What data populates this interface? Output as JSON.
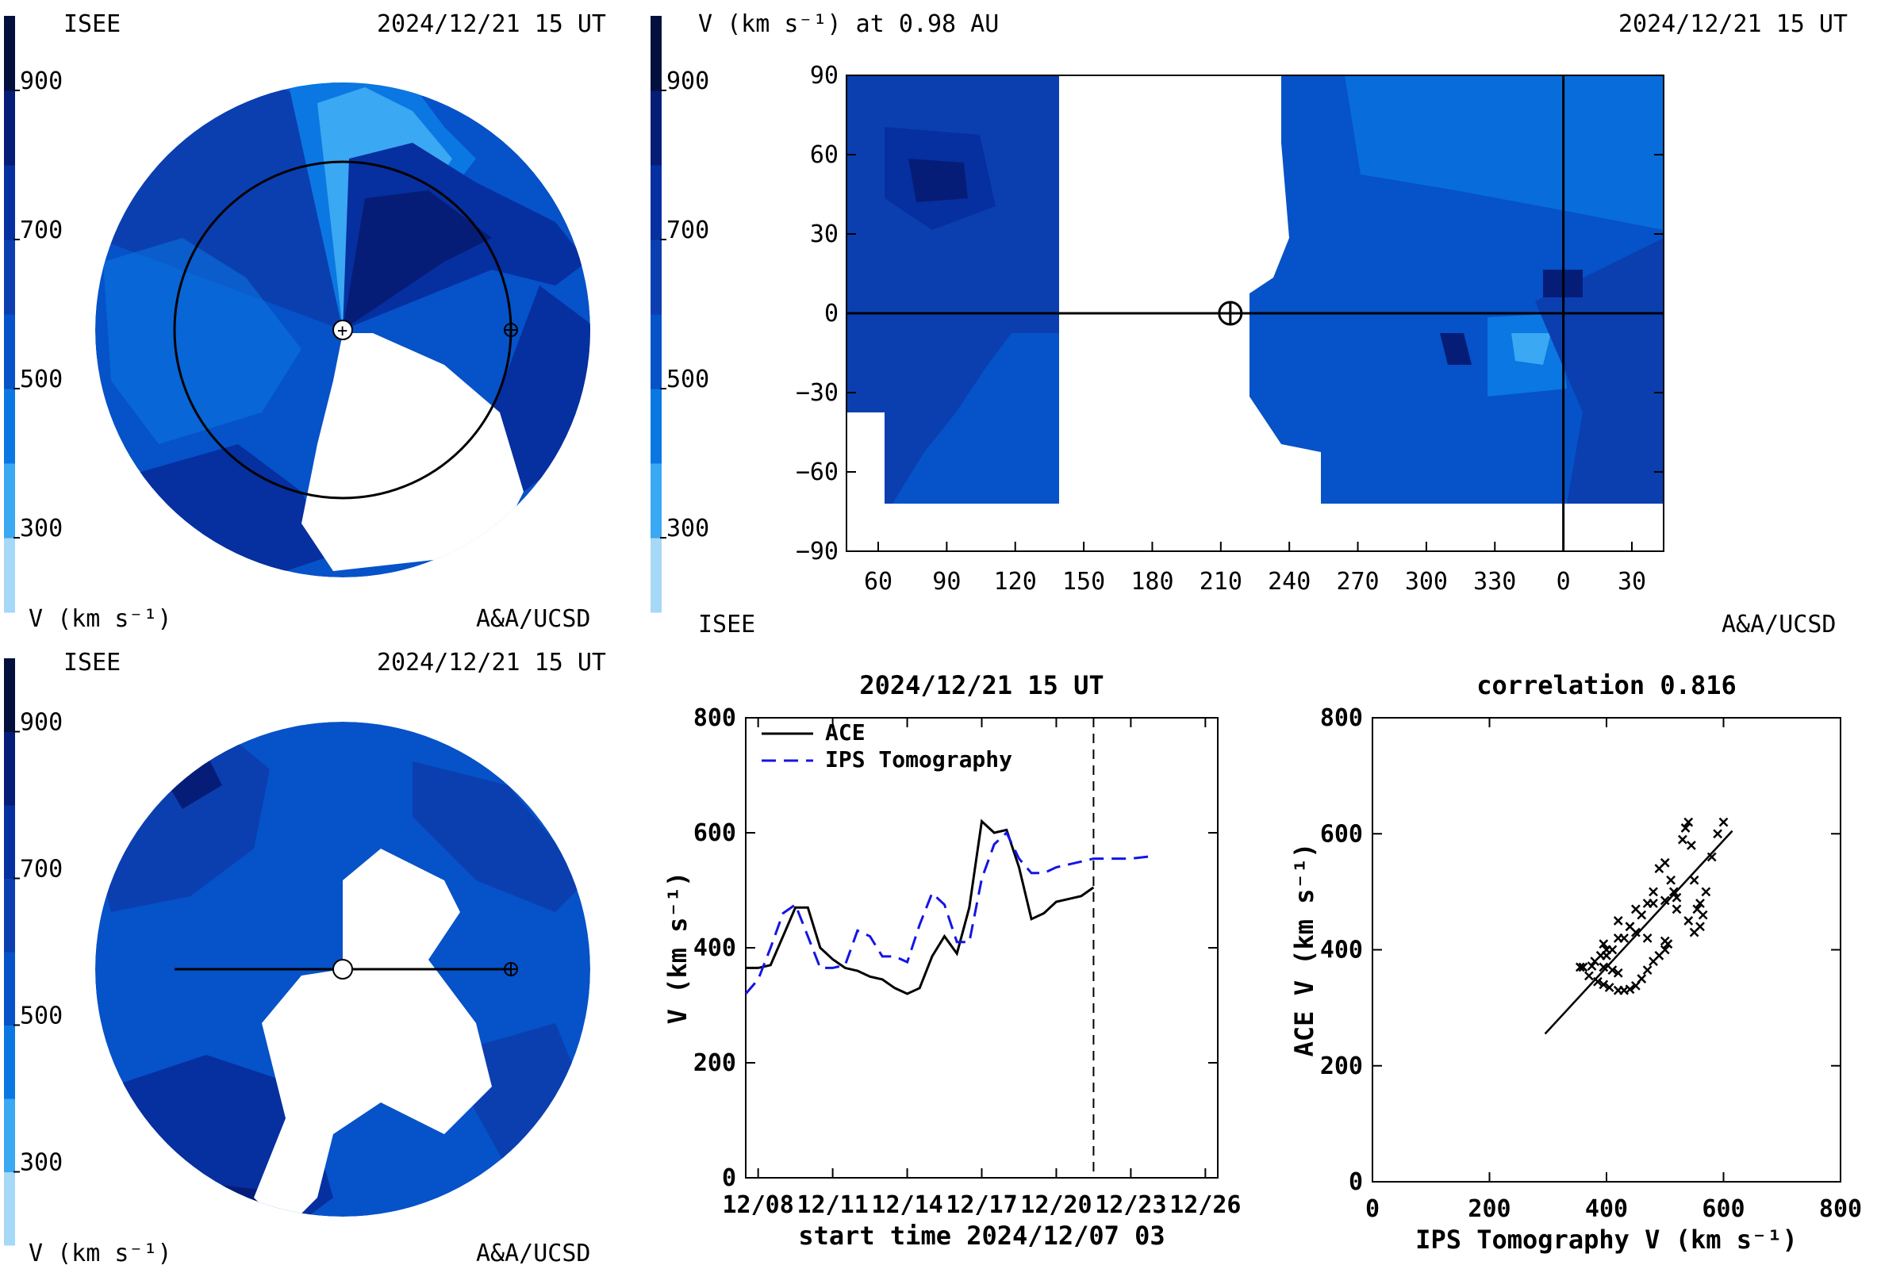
{
  "colorbar": {
    "levels": [
      "#a6d8f7",
      "#3aa8f2",
      "#0b77e2",
      "#0652c8",
      "#0b3fb0",
      "#062fa0",
      "#061d78",
      "#03103e"
    ],
    "ticks": [
      900,
      700,
      500,
      300
    ],
    "range": [
      200,
      1000
    ]
  },
  "panel_tl": {
    "left_label": "ISEE",
    "timestamp": "2024/12/21 15 UT",
    "unit_label": "V (km s⁻¹)",
    "credit": "A&A/UCSD"
  },
  "panel_tr": {
    "title": "V (km s⁻¹) at 0.98 AU",
    "timestamp": "2024/12/21 15 UT",
    "left_label": "ISEE",
    "credit": "A&A/UCSD",
    "y_ticks": [
      90,
      60,
      30,
      0,
      -30,
      -60,
      -90
    ],
    "x_ticks": [
      "60",
      "90",
      "120",
      "150",
      "180",
      "210",
      "240",
      "270",
      "300",
      "330",
      "0",
      "30"
    ]
  },
  "panel_bl": {
    "left_label": "ISEE",
    "timestamp": "2024/12/21 15 UT",
    "unit_label": "V (km s⁻¹)",
    "credit": "A&A/UCSD"
  },
  "chart_data": [
    {
      "type": "line",
      "title": "2024/12/21 15 UT",
      "xlabel": "start time 2024/12/07 03",
      "ylabel": "V (km s⁻¹)",
      "ylim": [
        0,
        800
      ],
      "xlim": [
        0.5,
        19.5
      ],
      "x_ticks": [
        {
          "x": 1,
          "label": "12/08"
        },
        {
          "x": 4,
          "label": "12/11"
        },
        {
          "x": 7,
          "label": "12/14"
        },
        {
          "x": 10,
          "label": "12/17"
        },
        {
          "x": 13,
          "label": "12/20"
        },
        {
          "x": 16,
          "label": "12/23"
        },
        {
          "x": 19,
          "label": "12/26"
        }
      ],
      "y_ticks": [
        0,
        200,
        400,
        600,
        800
      ],
      "vline_x": 14.5,
      "series": [
        {
          "name": "ACE",
          "color": "#000000",
          "dash": "none",
          "x": [
            0.5,
            1.0,
            1.5,
            2.0,
            2.5,
            3.0,
            3.5,
            4.0,
            4.5,
            5.0,
            5.5,
            6.0,
            6.5,
            7.0,
            7.5,
            8.0,
            8.5,
            9.0,
            9.5,
            10.0,
            10.5,
            11.0,
            11.5,
            12.0,
            12.5,
            13.0,
            13.5,
            14.0,
            14.5
          ],
          "values": [
            365,
            365,
            370,
            420,
            470,
            470,
            400,
            380,
            365,
            360,
            350,
            345,
            330,
            320,
            330,
            385,
            420,
            390,
            470,
            620,
            600,
            605,
            540,
            450,
            460,
            480,
            485,
            490,
            505
          ]
        },
        {
          "name": "IPS Tomography",
          "color": "#1414e6",
          "dash": "18,10",
          "x": [
            0.5,
            1.0,
            1.5,
            2.0,
            2.5,
            3.0,
            3.5,
            4.0,
            4.5,
            5.0,
            5.5,
            6.0,
            6.5,
            7.0,
            7.5,
            8.0,
            8.5,
            9.0,
            9.5,
            10.0,
            10.5,
            11.0,
            11.5,
            12.0,
            12.5,
            13.0,
            13.5,
            14.0,
            14.5,
            15.0,
            16.0,
            17.0
          ],
          "values": [
            320,
            345,
            400,
            460,
            475,
            420,
            365,
            365,
            370,
            430,
            420,
            385,
            385,
            375,
            440,
            495,
            475,
            410,
            410,
            520,
            580,
            600,
            555,
            530,
            530,
            540,
            545,
            550,
            555,
            555,
            555,
            560
          ]
        }
      ]
    },
    {
      "type": "scatter",
      "title": "correlation 0.816",
      "xlabel": "IPS Tomography V (km s⁻¹)",
      "ylabel": "ACE V (km s⁻¹)",
      "xlim": [
        0,
        800
      ],
      "ylim": [
        0,
        800
      ],
      "x_ticks": [
        0,
        200,
        400,
        600,
        800
      ],
      "y_ticks": [
        0,
        200,
        400,
        600,
        800
      ],
      "fit_line": [
        [
          295,
          255
        ],
        [
          615,
          605
        ]
      ],
      "x": [
        355,
        375,
        395,
        410,
        420,
        360,
        370,
        385,
        395,
        405,
        420,
        430,
        440,
        450,
        460,
        470,
        480,
        490,
        500,
        500,
        505,
        470,
        450,
        440,
        420,
        400,
        390,
        380,
        395,
        420,
        450,
        480,
        500,
        520,
        540,
        550,
        560,
        565,
        570,
        580,
        590,
        600,
        540,
        535,
        530,
        545,
        550,
        560,
        555,
        520,
        515,
        510,
        500,
        490,
        480,
        470,
        460,
        440,
        430,
        410,
        400
      ],
      "values": [
        370,
        372,
        370,
        365,
        360,
        370,
        355,
        345,
        340,
        335,
        330,
        330,
        332,
        338,
        350,
        365,
        380,
        390,
        400,
        415,
        410,
        420,
        430,
        440,
        420,
        400,
        390,
        380,
        410,
        450,
        470,
        480,
        485,
        470,
        450,
        430,
        440,
        460,
        500,
        560,
        600,
        620,
        620,
        610,
        590,
        580,
        520,
        480,
        470,
        490,
        500,
        520,
        550,
        540,
        500,
        480,
        460,
        440,
        420,
        400,
        390
      ]
    }
  ]
}
